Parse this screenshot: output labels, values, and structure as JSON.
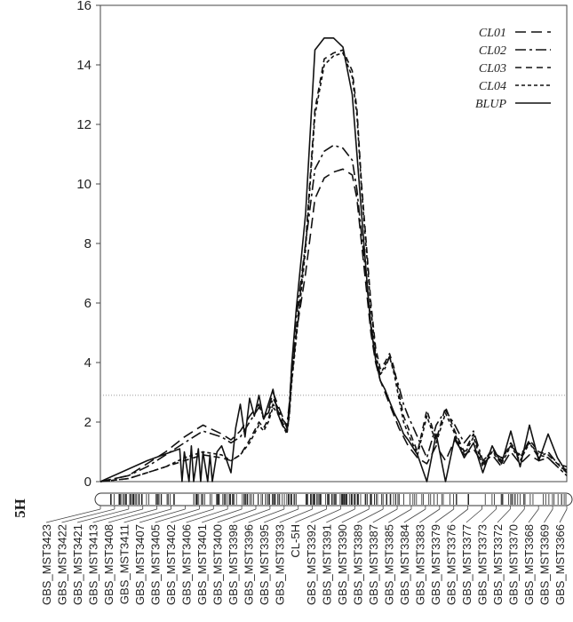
{
  "chart_data": {
    "type": "line",
    "title": "",
    "xlabel": "",
    "ylabel": "",
    "ylim": [
      0,
      16
    ],
    "yticks": [
      0,
      2,
      4,
      6,
      8,
      10,
      12,
      14,
      16
    ],
    "chromosome": "5H",
    "threshold": 2.9,
    "legend_position": "top-right",
    "markers": [
      "GBS_MST3423",
      "GBS_MST3422",
      "GBS_MST3421",
      "GBS_MST3413",
      "GBS_MST3408",
      "GBS_MST3411",
      "GBS_MST3407",
      "GBS_MST3405",
      "GBS_MST3402",
      "GBS_MST3406",
      "GBS_MST3401",
      "GBS_MST3400",
      "GBS_MST3398",
      "GBS_MST3396",
      "GBS_MST3395",
      "GBS_MST3393",
      "CL-5H",
      "GBS_MST3392",
      "GBS_MST3391",
      "GBS_MST3390",
      "GBS_MST3389",
      "GBS_MST3387",
      "GBS_MST3385",
      "GBS_MST3384",
      "GBS_MST3383",
      "GBS_MST3379",
      "GBS_MST3376",
      "GBS_MST3377",
      "GBS_MST3373",
      "GBS_MST3372",
      "GBS_MST3370",
      "GBS_MST3368",
      "GBS_MST3369",
      "GBS_MST3366"
    ],
    "x_range": [
      0,
      100
    ],
    "series": [
      {
        "name": "CL01",
        "dash": "12,6",
        "x": [
          0,
          6,
          10,
          14,
          18,
          22,
          26,
          28,
          30,
          32,
          34,
          35,
          36,
          37,
          38,
          39,
          40,
          40.5,
          41,
          42,
          44,
          46,
          48,
          50,
          52,
          54,
          55,
          56,
          57,
          58,
          59,
          60,
          61,
          62,
          63,
          64,
          65,
          66,
          68,
          70,
          72,
          74,
          76,
          78,
          80,
          82,
          84,
          86,
          88,
          90,
          92,
          94,
          96,
          98,
          100
        ],
        "y": [
          0,
          0.2,
          0.6,
          1.0,
          1.5,
          1.9,
          1.6,
          1.4,
          1.7,
          2.2,
          2.6,
          2.1,
          2.4,
          3.0,
          2.6,
          2.2,
          1.8,
          2.5,
          3.5,
          5.0,
          7.0,
          9.5,
          10.2,
          10.4,
          10.5,
          10.3,
          9.5,
          8.0,
          6.5,
          5.0,
          4.0,
          3.4,
          3.0,
          2.6,
          2.2,
          1.8,
          1.5,
          1.2,
          0.8,
          0.6,
          1.2,
          0.7,
          1.4,
          0.9,
          1.1,
          0.6,
          0.9,
          0.5,
          1.0,
          0.6,
          0.9,
          0.7,
          0.8,
          0.5,
          0.4
        ]
      },
      {
        "name": "CL02",
        "dash": "12,4,3,4",
        "x": [
          0,
          6,
          10,
          14,
          18,
          22,
          26,
          28,
          30,
          32,
          34,
          35,
          36,
          37,
          38,
          39,
          40,
          40.5,
          41,
          42,
          44,
          46,
          48,
          50,
          52,
          54,
          55,
          56,
          57,
          58,
          59,
          60,
          61,
          62,
          63,
          64,
          65,
          66,
          68,
          70,
          72,
          74,
          76,
          78,
          80,
          82,
          84,
          86,
          88,
          90,
          92,
          94,
          96,
          98,
          100
        ],
        "y": [
          0,
          0.2,
          0.5,
          0.9,
          1.3,
          1.7,
          1.5,
          1.3,
          1.5,
          2.0,
          2.5,
          2.2,
          2.3,
          2.8,
          2.5,
          2.1,
          1.9,
          2.6,
          3.8,
          5.5,
          8.0,
          10.5,
          11.1,
          11.3,
          11.2,
          10.8,
          9.8,
          8.3,
          6.8,
          5.3,
          4.2,
          3.6,
          3.8,
          4.2,
          3.7,
          3.2,
          2.6,
          2.2,
          1.5,
          0.8,
          1.9,
          2.4,
          1.9,
          1.3,
          1.7,
          0.7,
          1.0,
          0.8,
          1.2,
          0.9,
          1.3,
          0.8,
          1.0,
          0.6,
          0.5
        ]
      },
      {
        "name": "CL03",
        "dash": "7,5",
        "x": [
          0,
          6,
          10,
          14,
          18,
          22,
          26,
          28,
          30,
          32,
          34,
          35,
          36,
          37,
          38,
          39,
          40,
          40.5,
          41,
          42,
          44,
          46,
          48,
          50,
          52,
          54,
          55,
          56,
          57,
          58,
          59,
          60,
          61,
          62,
          63,
          64,
          65,
          66,
          68,
          70,
          72,
          74,
          76,
          78,
          80,
          82,
          84,
          86,
          88,
          90,
          92,
          94,
          96,
          98,
          100
        ],
        "y": [
          0,
          0.1,
          0.3,
          0.5,
          0.7,
          0.9,
          0.8,
          0.7,
          0.9,
          1.4,
          2.0,
          1.8,
          2.1,
          2.6,
          2.4,
          2.0,
          1.7,
          2.2,
          3.4,
          5.0,
          8.0,
          12.5,
          14.2,
          14.4,
          14.5,
          13.8,
          12.5,
          10.0,
          8.0,
          6.0,
          4.5,
          3.8,
          4.0,
          4.3,
          3.8,
          3.0,
          2.2,
          1.8,
          1.0,
          2.4,
          1.4,
          2.5,
          1.7,
          1.0,
          1.6,
          0.6,
          1.1,
          0.7,
          1.3,
          0.8,
          1.4,
          1.0,
          0.9,
          0.6,
          0.3
        ]
      },
      {
        "name": "CL04",
        "dash": "4,3",
        "x": [
          0,
          6,
          10,
          14,
          18,
          22,
          26,
          28,
          30,
          32,
          34,
          35,
          36,
          37,
          38,
          39,
          40,
          40.5,
          41,
          42,
          44,
          46,
          48,
          50,
          52,
          54,
          55,
          56,
          57,
          58,
          59,
          60,
          61,
          62,
          63,
          64,
          65,
          66,
          68,
          70,
          72,
          74,
          76,
          78,
          80,
          82,
          84,
          86,
          88,
          90,
          92,
          94,
          96,
          98,
          100
        ],
        "y": [
          0,
          0.1,
          0.3,
          0.5,
          0.8,
          1.0,
          0.9,
          0.7,
          0.9,
          1.3,
          1.9,
          1.7,
          2.0,
          2.5,
          2.3,
          1.9,
          1.6,
          2.2,
          3.3,
          4.8,
          7.8,
          12.3,
          14.0,
          14.3,
          14.4,
          13.6,
          12.3,
          9.8,
          7.8,
          5.8,
          4.3,
          3.6,
          3.9,
          4.2,
          3.6,
          2.8,
          2.0,
          1.6,
          0.9,
          2.2,
          1.3,
          2.3,
          1.6,
          0.9,
          1.5,
          0.5,
          1.0,
          0.6,
          1.2,
          0.7,
          1.3,
          0.9,
          0.8,
          0.5,
          0.2
        ]
      },
      {
        "name": "BLUP",
        "dash": "",
        "x": [
          0,
          10,
          17,
          17.5,
          18,
          19,
          19.5,
          20,
          21,
          21.5,
          22,
          23,
          23.5,
          24,
          25,
          26,
          28,
          29,
          30,
          31,
          32,
          33,
          34,
          35,
          36,
          37,
          38,
          39,
          40,
          40.5,
          41,
          42,
          44,
          46,
          48,
          50,
          52,
          54,
          55,
          56,
          57,
          58,
          59,
          60,
          61,
          62,
          63,
          64,
          65,
          66,
          68,
          70,
          72,
          74,
          76,
          78,
          80,
          82,
          84,
          86,
          88,
          90,
          92,
          94,
          96,
          98,
          100
        ],
        "y": [
          0,
          0.7,
          1.1,
          0,
          1.0,
          0,
          1.2,
          0,
          1.1,
          0,
          1.0,
          0,
          0.9,
          0,
          1.0,
          1.2,
          0.3,
          1.8,
          2.6,
          1.5,
          2.8,
          2.2,
          2.9,
          2.1,
          2.6,
          3.1,
          2.3,
          1.9,
          1.7,
          2.3,
          3.9,
          5.8,
          9.0,
          14.5,
          14.9,
          14.9,
          14.6,
          13.0,
          11.0,
          9.0,
          7.0,
          5.2,
          4.1,
          3.4,
          3.1,
          2.7,
          2.3,
          2.0,
          1.6,
          1.4,
          0.9,
          0,
          1.6,
          0,
          1.5,
          0.8,
          1.3,
          0.3,
          1.2,
          0.6,
          1.7,
          0.5,
          1.9,
          0.7,
          1.6,
          0.8,
          0.3
        ]
      }
    ]
  }
}
